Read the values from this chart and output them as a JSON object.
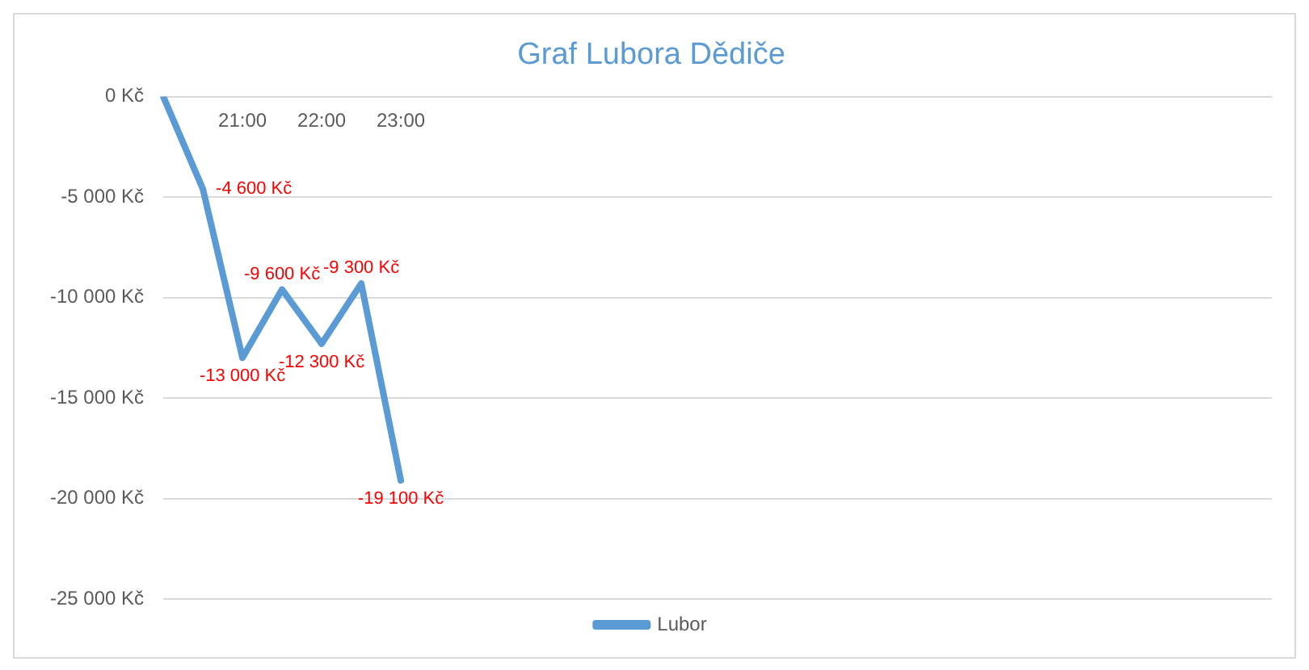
{
  "chart_data": {
    "type": "line",
    "title": "Graf Lubora Dědiče",
    "categories": [
      null,
      null,
      "21:00",
      null,
      "22:00",
      null,
      "23:00",
      null,
      null,
      null,
      null,
      null,
      null,
      null,
      null,
      null,
      null,
      null,
      null,
      null,
      null,
      null,
      null,
      null,
      null,
      null,
      null,
      null,
      null
    ],
    "series": [
      {
        "name": "Lubor",
        "color": "#5b9bd5",
        "values": [
          0,
          -4600,
          -13000,
          -9600,
          -12300,
          -9300,
          -19100,
          null,
          null,
          null,
          null,
          null,
          null,
          null,
          null,
          null,
          null,
          null,
          null,
          null,
          null,
          null,
          null,
          null,
          null,
          null,
          null,
          null,
          null
        ],
        "value_labels": [
          null,
          "-4 600 Kč",
          "-13 000 Kč",
          "-9 600 Kč",
          "-12 300 Kč",
          "-9 300 Kč",
          "-19 100 Kč",
          null,
          null,
          null,
          null,
          null,
          null,
          null,
          null,
          null,
          null,
          null,
          null,
          null,
          null,
          null,
          null,
          null,
          null,
          null,
          null,
          null,
          null
        ]
      }
    ],
    "ylim": [
      -25000,
      0
    ],
    "yticks": [
      {
        "value": 0,
        "label": "0 Kč"
      },
      {
        "value": -5000,
        "label": "-5 000 Kč"
      },
      {
        "value": -10000,
        "label": "-10 000 Kč"
      },
      {
        "value": -15000,
        "label": "-15 000 Kč"
      },
      {
        "value": -20000,
        "label": "-20 000 Kč"
      },
      {
        "value": -25000,
        "label": "-25 000 Kč"
      }
    ],
    "grid": "y",
    "legend": "bottom",
    "marker": "none",
    "line_style": "solid"
  }
}
